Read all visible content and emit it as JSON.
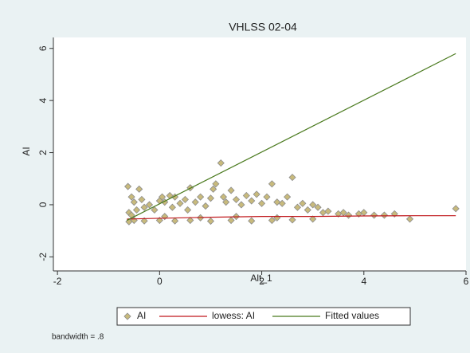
{
  "chart_data": {
    "type": "scatter",
    "title": "VHLSS 02-04",
    "x_label": "Alt_1",
    "y_label": "AI",
    "note": "bandwidth = .8",
    "xlim": [
      -2.08,
      6
    ],
    "ylim": [
      -2.54,
      6.42
    ],
    "xticks": [
      -2,
      0,
      2,
      4,
      6
    ],
    "yticks": [
      -2,
      0,
      2,
      4,
      6
    ],
    "series": [
      {
        "name": "AI",
        "mark": "diamond",
        "color": "#c8ba7c",
        "x": [
          -0.62,
          -0.6,
          -0.55,
          -0.5,
          -0.45,
          -0.4,
          -0.35,
          -0.3,
          -0.2,
          -0.1,
          0,
          0.05,
          0.1,
          0.2,
          0.25,
          0.3,
          0.4,
          0.5,
          0.55,
          0.6,
          0.7,
          0.8,
          0.9,
          1.0,
          1.05,
          1.1,
          1.2,
          1.25,
          1.3,
          1.4,
          1.5,
          1.6,
          1.7,
          1.8,
          1.9,
          2.0,
          2.1,
          2.2,
          2.3,
          2.4,
          2.5,
          2.6,
          2.7,
          2.8,
          2.9,
          3.0,
          3.1,
          3.2,
          3.3,
          3.5,
          3.6,
          3.7,
          3.9,
          4.0,
          4.2,
          4.4,
          4.6,
          4.9,
          5.8,
          -0.6,
          -0.5,
          -0.3,
          0,
          0.3,
          0.6,
          1,
          1.4,
          1.8,
          2.2,
          2.6,
          3,
          -0.55,
          0.1,
          0.8,
          1.5,
          2.3
        ],
        "values": [
          0.7,
          -0.3,
          0.3,
          0.1,
          -0.2,
          0.6,
          0.2,
          -0.1,
          0,
          -0.2,
          0.15,
          0.3,
          0.1,
          0.35,
          -0.1,
          0.3,
          0.05,
          0.2,
          -0.2,
          0.65,
          0.1,
          0.3,
          -0.05,
          0.25,
          0.6,
          0.8,
          1.6,
          0.3,
          0.1,
          0.55,
          0.2,
          0,
          0.35,
          0.15,
          0.4,
          0.05,
          0.3,
          0.8,
          0.1,
          0.05,
          0.3,
          1.05,
          -0.1,
          0.05,
          -0.2,
          0,
          -0.1,
          -0.3,
          -0.25,
          -0.35,
          -0.3,
          -0.4,
          -0.35,
          -0.3,
          -0.4,
          -0.4,
          -0.35,
          -0.55,
          -0.15,
          -0.65,
          -0.6,
          -0.62,
          -0.6,
          -0.62,
          -0.6,
          -0.63,
          -0.6,
          -0.62,
          -0.6,
          -0.58,
          -0.55,
          -0.4,
          -0.45,
          -0.5,
          -0.45,
          -0.5
        ]
      },
      {
        "name": "lowess: AI",
        "mark": "line",
        "color": "#c0181c",
        "x": [
          -0.64,
          0,
          1,
          2,
          3,
          4,
          5,
          5.8
        ],
        "values": [
          -0.55,
          -0.52,
          -0.48,
          -0.45,
          -0.45,
          -0.43,
          -0.42,
          -0.42
        ]
      },
      {
        "name": "Fitted values",
        "mark": "line",
        "color": "#4a7a1e",
        "x": [
          -0.64,
          5.8
        ],
        "values": [
          -0.6,
          5.8
        ]
      }
    ]
  }
}
